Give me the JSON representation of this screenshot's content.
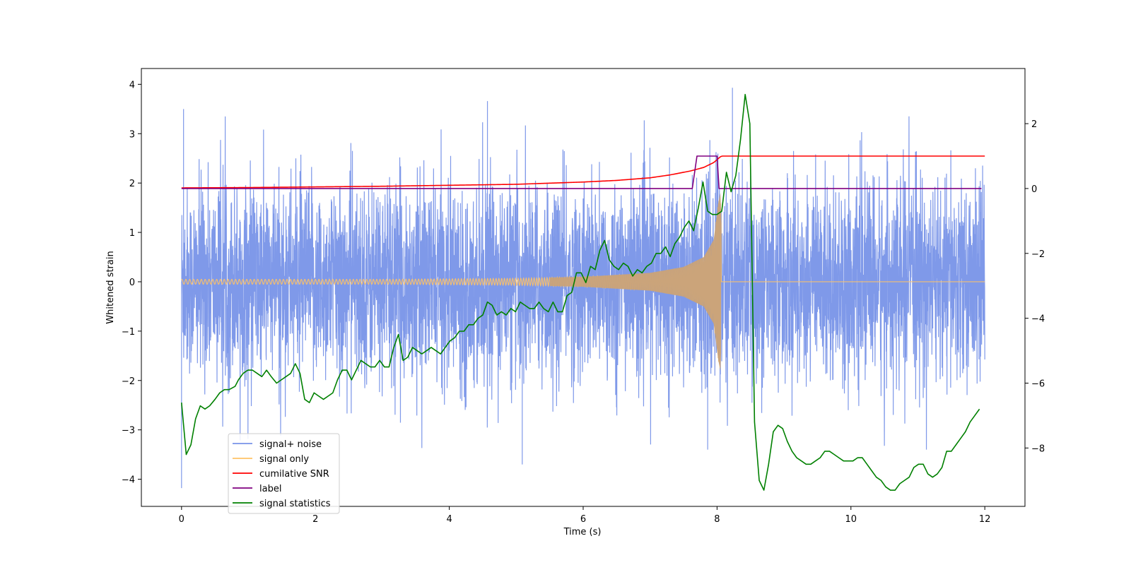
{
  "chart_data": {
    "type": "line",
    "title": "",
    "xlabel": "Time (s)",
    "ylabel": "Whitened strain",
    "ylabel_right": "",
    "xlim": [
      -0.6,
      12.6
    ],
    "ylim": [
      -4.55,
      4.32
    ],
    "ylim_right": [
      -9.8,
      3.7
    ],
    "x_ticks": [
      0,
      2,
      4,
      6,
      8,
      10,
      12
    ],
    "x_tick_labels": [
      "0",
      "2",
      "4",
      "6",
      "8",
      "10",
      "12"
    ],
    "y_ticks": [
      -4,
      -3,
      -2,
      -1,
      0,
      1,
      2,
      3,
      4
    ],
    "y_tick_labels": [
      "−4",
      "−3",
      "−2",
      "−1",
      "0",
      "1",
      "2",
      "3",
      "4"
    ],
    "y_ticks_right": [
      -8,
      -6,
      -4,
      -2,
      0,
      2
    ],
    "y_tick_labels_right": [
      "−8",
      "−6",
      "−4",
      "−2",
      "0",
      "2"
    ],
    "grid": false,
    "legend_position": "lower-left",
    "series": [
      {
        "name": "signal+ noise",
        "axis": "left",
        "color": "#7893e8",
        "style": "dense noise, roughly standard normal, peaks near ±3.5",
        "x_range": [
          0,
          12
        ],
        "noise_std": 0.95,
        "notable_points": [
          [
            0.0,
            -4.18
          ],
          [
            0.03,
            3.5
          ],
          [
            8.23,
            3.93
          ],
          [
            5.09,
            -3.7
          ],
          [
            4.57,
            3.66
          ],
          [
            7.86,
            -3.4
          ]
        ]
      },
      {
        "name": "signal only",
        "axis": "left",
        "color": "#ffc266",
        "style": "chirp: small oscillation growing in amplitude and frequency until merger at t=8.05, then flat at 0",
        "x": [
          0,
          1,
          2,
          3,
          4,
          5,
          6,
          7,
          7.5,
          7.8,
          7.95,
          8.02,
          8.05,
          8.1,
          12
        ],
        "amplitude": [
          0.05,
          0.05,
          0.05,
          0.05,
          0.06,
          0.07,
          0.1,
          0.18,
          0.3,
          0.5,
          0.85,
          1.6,
          1.8,
          0,
          0
        ]
      },
      {
        "name": "cumilative SNR",
        "axis": "right",
        "color": "#ff0000",
        "x": [
          0,
          1,
          2,
          3,
          4,
          5,
          6,
          6.5,
          7,
          7.3,
          7.6,
          7.8,
          7.95,
          8.05,
          8.07,
          12
        ],
        "values": [
          0.02,
          0.03,
          0.05,
          0.07,
          0.1,
          0.13,
          0.2,
          0.25,
          0.33,
          0.42,
          0.54,
          0.65,
          0.8,
          0.98,
          1.0,
          1.0
        ]
      },
      {
        "name": "label",
        "axis": "right",
        "color": "#800080",
        "x": [
          0,
          7.63,
          7.7,
          8.0,
          8.03,
          11.95
        ],
        "values": [
          0,
          0,
          1.0,
          1.0,
          0,
          0
        ]
      },
      {
        "name": "signal statistics",
        "axis": "right",
        "color": "#008000",
        "x": [
          0.0,
          0.07,
          0.14,
          0.21,
          0.28,
          0.35,
          0.42,
          0.5,
          0.57,
          0.64,
          0.71,
          0.8,
          0.85,
          0.92,
          0.99,
          1.06,
          1.13,
          1.2,
          1.27,
          1.34,
          1.42,
          1.49,
          1.56,
          1.63,
          1.7,
          1.77,
          1.84,
          1.91,
          1.98,
          2.05,
          2.12,
          2.19,
          2.26,
          2.33,
          2.4,
          2.47,
          2.54,
          2.61,
          2.68,
          2.75,
          2.82,
          2.89,
          2.96,
          3.03,
          3.1,
          3.17,
          3.24,
          3.31,
          3.38,
          3.45,
          3.52,
          3.59,
          3.66,
          3.73,
          3.8,
          3.87,
          3.94,
          4.01,
          4.08,
          4.15,
          4.22,
          4.29,
          4.36,
          4.43,
          4.5,
          4.57,
          4.64,
          4.71,
          4.78,
          4.85,
          4.92,
          4.99,
          5.06,
          5.13,
          5.2,
          5.27,
          5.34,
          5.41,
          5.48,
          5.55,
          5.62,
          5.69,
          5.76,
          5.83,
          5.9,
          5.97,
          6.04,
          6.11,
          6.18,
          6.25,
          6.32,
          6.39,
          6.46,
          6.53,
          6.6,
          6.67,
          6.74,
          6.81,
          6.88,
          6.95,
          7.02,
          7.09,
          7.16,
          7.23,
          7.3,
          7.37,
          7.44,
          7.51,
          7.58,
          7.65,
          7.72,
          7.79,
          7.86,
          7.93,
          8.0,
          8.07,
          8.14,
          8.21,
          8.28,
          8.35,
          8.42,
          8.49,
          8.56,
          8.63,
          8.7,
          8.77,
          8.84,
          8.91,
          8.98,
          9.05,
          9.12,
          9.19,
          9.26,
          9.33,
          9.4,
          9.47,
          9.54,
          9.61,
          9.68,
          9.75,
          9.82,
          9.89,
          9.96,
          10.03,
          10.1,
          10.17,
          10.24,
          10.31,
          10.38,
          10.45,
          10.52,
          10.59,
          10.66,
          10.73,
          10.8,
          10.87,
          10.94,
          11.01,
          11.08,
          11.15,
          11.22,
          11.29,
          11.36,
          11.43,
          11.5,
          11.57,
          11.64,
          11.71,
          11.78,
          11.85,
          11.92
        ],
        "values": [
          -6.6,
          -8.2,
          -7.9,
          -7.1,
          -6.7,
          -6.8,
          -6.7,
          -6.5,
          -6.3,
          -6.2,
          -6.2,
          -6.1,
          -5.9,
          -5.7,
          -5.6,
          -5.6,
          -5.7,
          -5.8,
          -5.6,
          -5.8,
          -6.0,
          -5.9,
          -5.8,
          -5.7,
          -5.4,
          -5.7,
          -6.5,
          -6.6,
          -6.3,
          -6.4,
          -6.5,
          -6.4,
          -6.3,
          -5.9,
          -5.6,
          -5.6,
          -5.9,
          -5.6,
          -5.3,
          -5.4,
          -5.5,
          -5.5,
          -5.3,
          -5.5,
          -5.5,
          -4.9,
          -4.5,
          -5.3,
          -5.2,
          -4.9,
          -5.0,
          -5.1,
          -5.0,
          -4.9,
          -5.0,
          -5.1,
          -4.9,
          -4.7,
          -4.6,
          -4.4,
          -4.4,
          -4.2,
          -4.2,
          -4.0,
          -3.9,
          -3.5,
          -3.6,
          -3.9,
          -3.8,
          -3.9,
          -3.7,
          -3.8,
          -3.5,
          -3.6,
          -3.7,
          -3.7,
          -3.5,
          -3.7,
          -3.8,
          -3.5,
          -3.8,
          -3.8,
          -3.3,
          -3.2,
          -2.6,
          -2.6,
          -2.9,
          -2.4,
          -2.5,
          -1.9,
          -1.6,
          -2.2,
          -2.4,
          -2.5,
          -2.3,
          -2.4,
          -2.7,
          -2.5,
          -2.6,
          -2.4,
          -2.3,
          -2.0,
          -2.0,
          -1.8,
          -2.1,
          -1.7,
          -1.5,
          -1.2,
          -1.0,
          -1.3,
          -0.6,
          0.2,
          -0.7,
          -0.8,
          -0.8,
          -0.7,
          0.5,
          -0.1,
          0.4,
          1.5,
          2.9,
          2.0,
          -7.2,
          -9.0,
          -9.3,
          -8.5,
          -7.5,
          -7.3,
          -7.4,
          -7.8,
          -8.1,
          -8.3,
          -8.4,
          -8.5,
          -8.5,
          -8.4,
          -8.3,
          -8.1,
          -8.1,
          -8.2,
          -8.3,
          -8.4,
          -8.4,
          -8.4,
          -8.3,
          -8.3,
          -8.5,
          -8.7,
          -8.9,
          -9.0,
          -9.2,
          -9.3,
          -9.3,
          -9.1,
          -9.0,
          -8.9,
          -8.6,
          -8.5,
          -8.5,
          -8.8,
          -8.9,
          -8.8,
          -8.6,
          -8.1,
          -8.1,
          -7.9,
          -7.7,
          -7.5,
          -7.2,
          -7.0,
          -6.8
        ],
        "__snap": "pre-merger points nudged; merger peak 2.9 near t=7.93"
      }
    ]
  }
}
